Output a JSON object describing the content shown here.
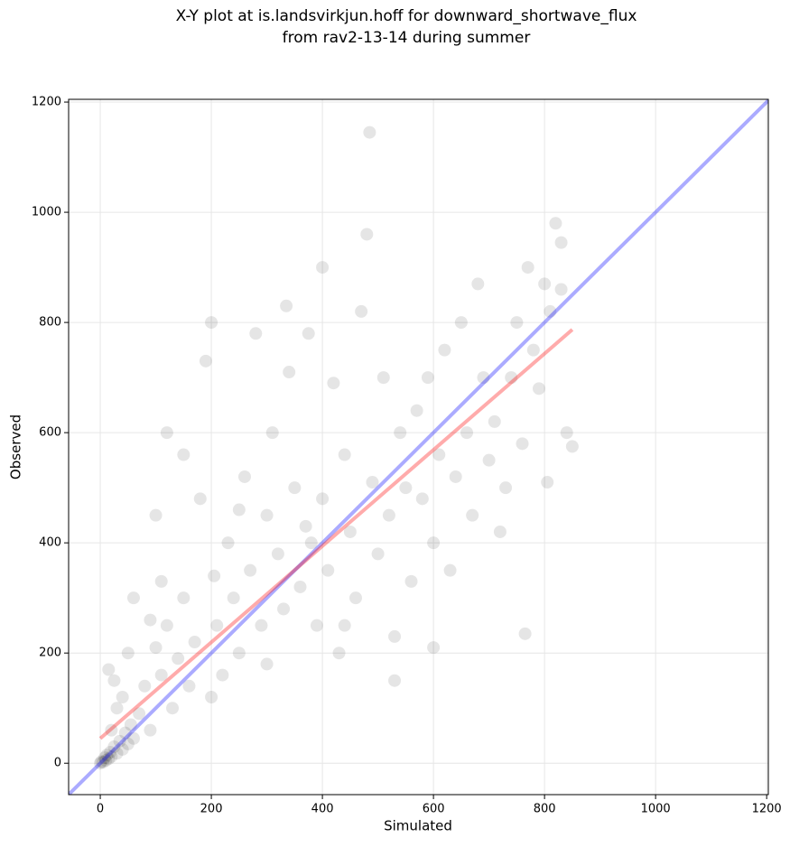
{
  "chart_data": {
    "type": "scatter",
    "title": [
      "X-Y plot at is.landsvirkjun.hoff for downward_shortwave_flux",
      "from rav2-13-14 during summer"
    ],
    "xlabel": "Simulated",
    "ylabel": "Observed",
    "xlim": [
      -57,
      1203
    ],
    "ylim": [
      -57,
      1205
    ],
    "xticks": [
      0,
      200,
      400,
      600,
      800,
      1000,
      1200
    ],
    "yticks": [
      0,
      200,
      400,
      600,
      800,
      1000,
      1200
    ],
    "grid": true,
    "color": "#000000",
    "alpha": 0.1,
    "x": [
      0,
      2,
      5,
      8,
      10,
      12,
      15,
      18,
      20,
      25,
      30,
      35,
      40,
      45,
      50,
      55,
      60,
      20,
      30,
      15,
      25,
      40,
      50,
      70,
      80,
      90,
      100,
      110,
      120,
      130,
      140,
      150,
      160,
      170,
      180,
      190,
      200,
      205,
      210,
      220,
      230,
      240,
      250,
      260,
      270,
      280,
      290,
      300,
      310,
      320,
      330,
      335,
      340,
      350,
      360,
      370,
      375,
      380,
      390,
      400,
      410,
      420,
      430,
      440,
      450,
      460,
      470,
      480,
      485,
      490,
      500,
      510,
      520,
      530,
      540,
      550,
      560,
      570,
      580,
      590,
      600,
      610,
      620,
      630,
      640,
      650,
      660,
      670,
      680,
      690,
      700,
      710,
      720,
      730,
      740,
      750,
      760,
      765,
      770,
      780,
      790,
      800,
      805,
      810,
      820,
      830,
      840,
      850,
      830,
      150,
      100,
      60,
      120,
      400,
      600,
      530,
      90,
      110,
      200,
      250,
      300,
      440
    ],
    "y": [
      0,
      3,
      2,
      10,
      5,
      15,
      8,
      20,
      12,
      30,
      18,
      40,
      25,
      55,
      35,
      70,
      45,
      60,
      100,
      170,
      150,
      120,
      200,
      90,
      140,
      60,
      210,
      160,
      250,
      100,
      190,
      300,
      140,
      220,
      480,
      730,
      800,
      340,
      250,
      160,
      400,
      300,
      200,
      520,
      350,
      780,
      250,
      450,
      600,
      380,
      280,
      830,
      710,
      500,
      320,
      430,
      780,
      400,
      250,
      480,
      350,
      690,
      200,
      560,
      420,
      300,
      820,
      960,
      1145,
      510,
      380,
      700,
      450,
      230,
      600,
      500,
      330,
      640,
      480,
      700,
      400,
      560,
      750,
      350,
      520,
      800,
      600,
      450,
      870,
      700,
      550,
      620,
      420,
      500,
      700,
      800,
      580,
      235,
      900,
      750,
      680,
      870,
      510,
      820,
      980,
      860,
      600,
      575,
      945,
      560,
      450,
      300,
      600,
      900,
      210,
      150,
      260,
      330,
      120,
      460,
      180,
      250
    ],
    "lines": [
      {
        "color": "#0000ff",
        "x": [
          -57,
          1205
        ],
        "y": [
          -57,
          1205
        ]
      },
      {
        "color": "#ff0000",
        "x": [
          0,
          850
        ],
        "y": [
          45,
          787
        ]
      }
    ]
  }
}
